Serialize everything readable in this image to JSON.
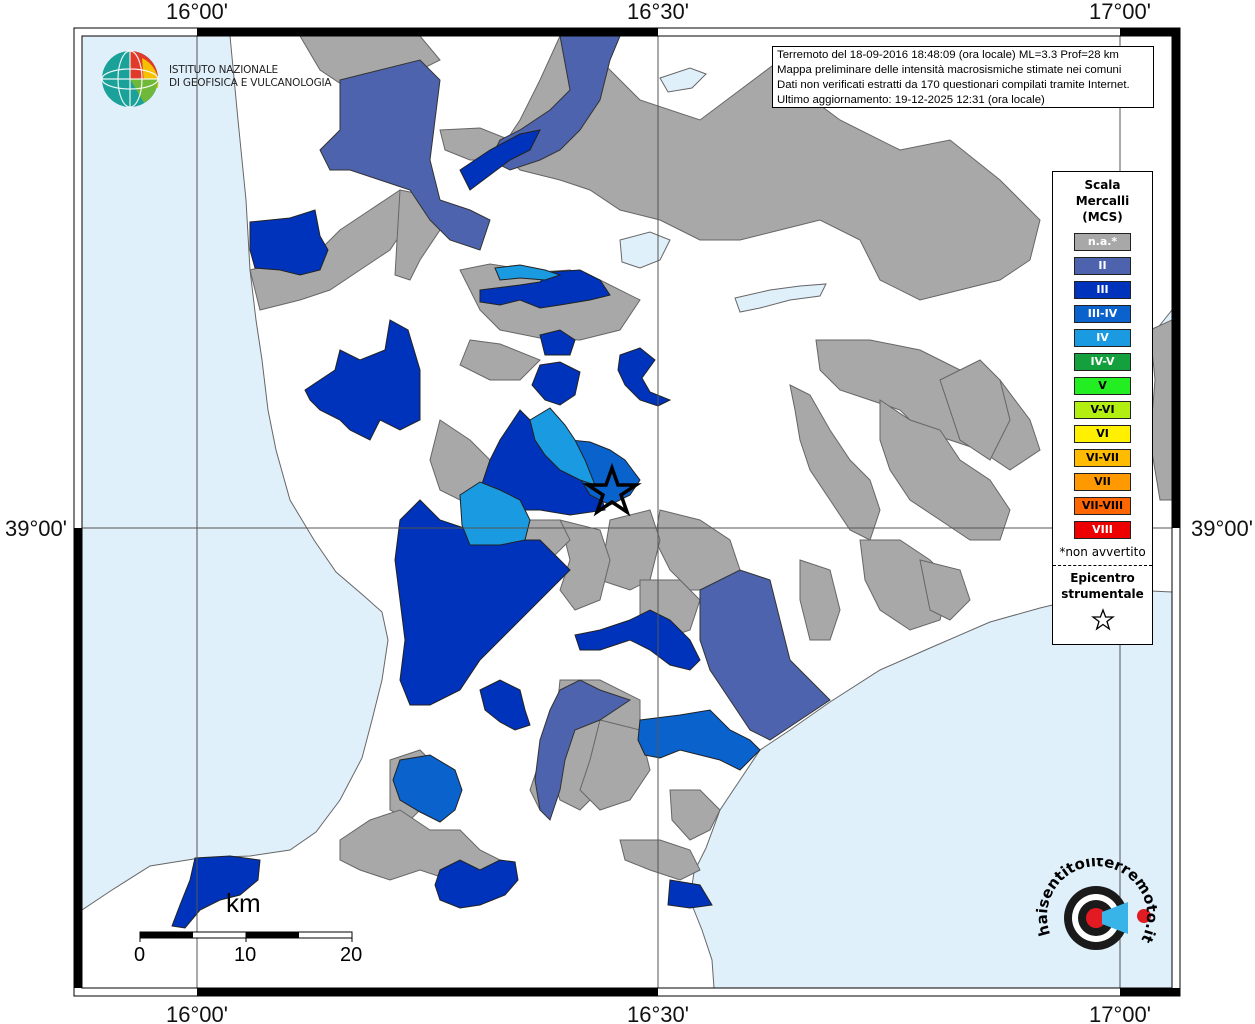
{
  "map": {
    "lon_labels": [
      "16°00'",
      "16°30'",
      "17°00'"
    ],
    "lat_labels": [
      "39°00'"
    ],
    "colors": {
      "sea": "#dff0fb",
      "land": "#ffffff",
      "na": "#a8a8a8",
      "ii": "#4d63ad",
      "iii": "#0033bb",
      "iii_iv": "#0a62cc",
      "iv": "#1a9ae0"
    }
  },
  "info": {
    "line1": "Terremoto del 18-09-2016 18:48:09 (ora locale) ML=3.3 Prof=28 km",
    "line2": "Mappa preliminare delle intensità macrosismiche stimate nei comuni",
    "line3": "Dati non verificati estratti da 170 questionari compilati tramite Internet.",
    "line4": "Ultimo aggiornamento: 19-12-2025 12:31 (ora locale)"
  },
  "logo": {
    "line1": "ISTITUTO NAZIONALE",
    "line2": "DI GEOFISICA E VULCANOLOGIA",
    "icon": "ingv-globe-icon"
  },
  "legend": {
    "title_line1": "Scala",
    "title_line2": "Mercalli",
    "title_line3": "(MCS)",
    "items": [
      {
        "label": "n.a.*",
        "color": "#a8a8a8",
        "text": "#ffffff"
      },
      {
        "label": "II",
        "color": "#4d63ad",
        "text": "#ffffff"
      },
      {
        "label": "III",
        "color": "#0033bb",
        "text": "#ffffff"
      },
      {
        "label": "III-IV",
        "color": "#0a62cc",
        "text": "#ffffff"
      },
      {
        "label": "IV",
        "color": "#1a9ae0",
        "text": "#ffffff"
      },
      {
        "label": "IV-V",
        "color": "#14a03c",
        "text": "#ffffff"
      },
      {
        "label": "V",
        "color": "#22ee22",
        "text": "#000000"
      },
      {
        "label": "V-VI",
        "color": "#b2ee10",
        "text": "#000000"
      },
      {
        "label": "VI",
        "color": "#fff000",
        "text": "#000000"
      },
      {
        "label": "VI-VII",
        "color": "#ffbb00",
        "text": "#000000"
      },
      {
        "label": "VII",
        "color": "#ff9900",
        "text": "#000000"
      },
      {
        "label": "VII-VIII",
        "color": "#ff6600",
        "text": "#000000"
      },
      {
        "label": "VIII",
        "color": "#ee0000",
        "text": "#ffffff"
      }
    ],
    "note": "*non avvertito",
    "epicenter_line1": "Epicentro",
    "epicenter_line2": "strumentale",
    "epicenter_icon": "star-icon"
  },
  "scale_bar": {
    "unit": "km",
    "labels": [
      "0",
      "10",
      "20"
    ]
  },
  "watermark": {
    "text": "haisentitoilterremoto.it",
    "icon": "hst-logo-icon"
  }
}
